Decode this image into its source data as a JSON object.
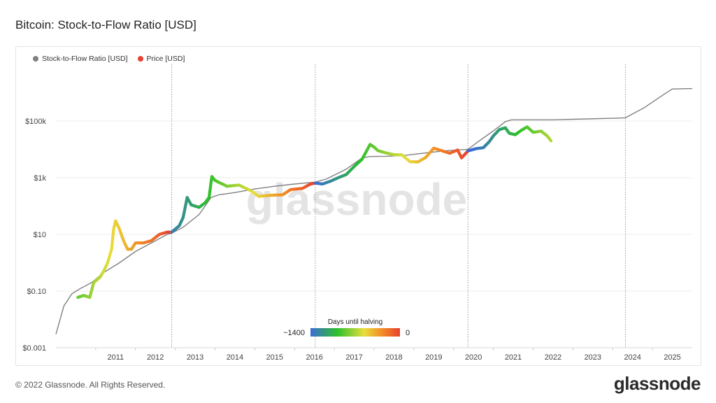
{
  "title": "Bitcoin: Stock-to-Flow Ratio [USD]",
  "legend": [
    {
      "label": "Stock-to-Flow Ratio [USD]",
      "color": "#808080"
    },
    {
      "label": "Price [USD]",
      "color": "#e8412f"
    }
  ],
  "colorbar": {
    "title": "Days until halving",
    "left_label": "~1400",
    "right_label": "0",
    "stops": [
      "#3b6bd6",
      "#2cc02c",
      "#e8de3c",
      "#f28c26",
      "#e8412f"
    ]
  },
  "watermark": "glassnode",
  "footer": {
    "copyright": "© 2022 Glassnode. All Rights Reserved.",
    "logo": "glassnode"
  },
  "chart_data": {
    "type": "line",
    "title": "Bitcoin: Stock-to-Flow Ratio [USD]",
    "y_scale": "log",
    "ylim": [
      0.001,
      10000000
    ],
    "xlim": [
      2010.0,
      2026.0
    ],
    "y_ticks": [
      {
        "value": 0.001,
        "label": "$0.001"
      },
      {
        "value": 0.1,
        "label": "$0.10"
      },
      {
        "value": 10,
        "label": "$10"
      },
      {
        "value": 1000,
        "label": "$1k"
      },
      {
        "value": 100000,
        "label": "$100k"
      }
    ],
    "x_ticks": [
      "2011",
      "2012",
      "2013",
      "2014",
      "2015",
      "2016",
      "2017",
      "2018",
      "2019",
      "2020",
      "2021",
      "2022",
      "2023",
      "2024",
      "2025"
    ],
    "halvings": [
      2012.91,
      2016.52,
      2020.36,
      2024.32
    ],
    "series": [
      {
        "name": "Stock-to-Flow Ratio [USD]",
        "color": "#808080",
        "points": [
          [
            2010.0,
            0.003
          ],
          [
            2010.2,
            0.03
          ],
          [
            2010.4,
            0.08
          ],
          [
            2010.6,
            0.12
          ],
          [
            2010.9,
            0.2
          ],
          [
            2011.2,
            0.45
          ],
          [
            2011.6,
            1.0
          ],
          [
            2012.0,
            2.5
          ],
          [
            2012.4,
            5
          ],
          [
            2012.8,
            10
          ],
          [
            2012.91,
            11
          ],
          [
            2013.2,
            18
          ],
          [
            2013.6,
            50
          ],
          [
            2013.9,
            200
          ],
          [
            2014.1,
            250
          ],
          [
            2014.5,
            300
          ],
          [
            2015.0,
            400
          ],
          [
            2015.5,
            500
          ],
          [
            2016.0,
            600
          ],
          [
            2016.52,
            700
          ],
          [
            2016.8,
            900
          ],
          [
            2017.3,
            2000
          ],
          [
            2017.7,
            5000
          ],
          [
            2017.9,
            5600
          ],
          [
            2018.3,
            5700
          ],
          [
            2018.8,
            6200
          ],
          [
            2019.3,
            7500
          ],
          [
            2019.8,
            9000
          ],
          [
            2020.36,
            10000
          ],
          [
            2020.6,
            18000
          ],
          [
            2021.0,
            45000
          ],
          [
            2021.3,
            95000
          ],
          [
            2021.45,
            110000
          ],
          [
            2022.0,
            110000
          ],
          [
            2022.5,
            110000
          ],
          [
            2023.0,
            115000
          ],
          [
            2024.0,
            125000
          ],
          [
            2024.32,
            130000
          ],
          [
            2024.8,
            300000
          ],
          [
            2025.3,
            900000
          ],
          [
            2025.5,
            1350000
          ],
          [
            2026.0,
            1400000
          ]
        ]
      },
      {
        "name": "Price [USD]",
        "color": "#e8412f",
        "points": [
          [
            2010.55,
            0.06
          ],
          [
            2010.7,
            0.07
          ],
          [
            2010.85,
            0.06
          ],
          [
            2010.95,
            0.2
          ],
          [
            2011.1,
            0.3
          ],
          [
            2011.2,
            0.5
          ],
          [
            2011.3,
            1
          ],
          [
            2011.4,
            3
          ],
          [
            2011.45,
            15
          ],
          [
            2011.5,
            30
          ],
          [
            2011.6,
            15
          ],
          [
            2011.7,
            6
          ],
          [
            2011.8,
            3
          ],
          [
            2011.9,
            3
          ],
          [
            2012.0,
            5
          ],
          [
            2012.2,
            5
          ],
          [
            2012.4,
            6
          ],
          [
            2012.6,
            10
          ],
          [
            2012.8,
            12
          ],
          [
            2012.91,
            12
          ],
          [
            2013.1,
            20
          ],
          [
            2013.2,
            40
          ],
          [
            2013.3,
            200
          ],
          [
            2013.4,
            110
          ],
          [
            2013.6,
            90
          ],
          [
            2013.75,
            130
          ],
          [
            2013.85,
            200
          ],
          [
            2013.92,
            1100
          ],
          [
            2014.0,
            800
          ],
          [
            2014.3,
            500
          ],
          [
            2014.6,
            550
          ],
          [
            2014.9,
            350
          ],
          [
            2015.1,
            220
          ],
          [
            2015.4,
            240
          ],
          [
            2015.7,
            250
          ],
          [
            2015.9,
            380
          ],
          [
            2016.2,
            420
          ],
          [
            2016.4,
            600
          ],
          [
            2016.52,
            650
          ],
          [
            2016.7,
            600
          ],
          [
            2016.9,
            750
          ],
          [
            2017.1,
            1000
          ],
          [
            2017.3,
            1300
          ],
          [
            2017.5,
            2500
          ],
          [
            2017.7,
            4500
          ],
          [
            2017.9,
            15000
          ],
          [
            2018.0,
            12000
          ],
          [
            2018.1,
            9000
          ],
          [
            2018.3,
            7500
          ],
          [
            2018.5,
            6500
          ],
          [
            2018.7,
            6400
          ],
          [
            2018.9,
            3700
          ],
          [
            2019.1,
            3600
          ],
          [
            2019.3,
            5200
          ],
          [
            2019.5,
            11000
          ],
          [
            2019.7,
            9000
          ],
          [
            2019.9,
            7300
          ],
          [
            2020.1,
            9500
          ],
          [
            2020.2,
            5000
          ],
          [
            2020.36,
            8800
          ],
          [
            2020.55,
            10500
          ],
          [
            2020.75,
            11500
          ],
          [
            2020.9,
            19000
          ],
          [
            2021.0,
            30000
          ],
          [
            2021.15,
            50000
          ],
          [
            2021.3,
            58000
          ],
          [
            2021.4,
            37000
          ],
          [
            2021.55,
            33000
          ],
          [
            2021.7,
            47000
          ],
          [
            2021.85,
            62000
          ],
          [
            2022.0,
            40000
          ],
          [
            2022.2,
            44000
          ],
          [
            2022.35,
            30000
          ],
          [
            2022.45,
            20000
          ]
        ]
      }
    ]
  }
}
